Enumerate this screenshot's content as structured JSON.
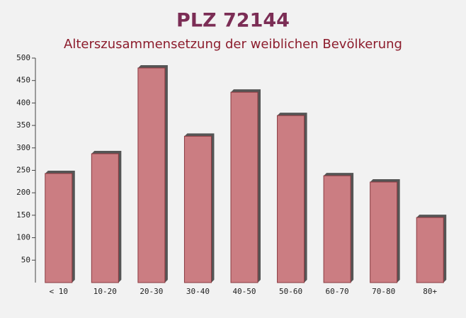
{
  "chart_data": {
    "type": "bar",
    "title": "PLZ 72144",
    "subtitle": "Alterszusammensetzung der weiblichen Bevölkerung",
    "categories": [
      "< 10",
      "10-20",
      "20-30",
      "30-40",
      "40-50",
      "50-60",
      "60-70",
      "70-80",
      "80+"
    ],
    "values": [
      243,
      287,
      478,
      326,
      424,
      372,
      238,
      224,
      145
    ],
    "color": "#c4686e",
    "ylim": [
      0,
      500
    ],
    "yticks": [
      50,
      100,
      150,
      200,
      250,
      300,
      350,
      400,
      450,
      500
    ]
  }
}
